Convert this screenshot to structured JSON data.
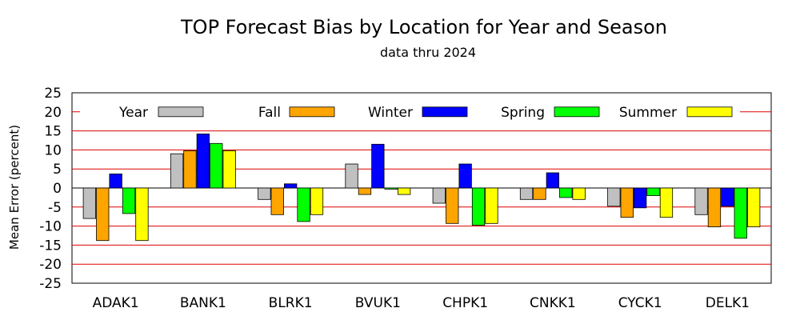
{
  "chart_data": {
    "type": "bar",
    "title": "TOP Forecast Bias by Location for Year and Season",
    "subtitle": "data thru 2024",
    "xlabel": "",
    "ylabel": "Mean Error (percent)",
    "ylim": [
      -25,
      25
    ],
    "yticks": [
      25,
      20,
      15,
      10,
      5,
      0,
      -5,
      -10,
      -15,
      -20,
      -25
    ],
    "grid": "horizontal, red",
    "legend_position": "top",
    "categories": [
      "ADAK1",
      "BANK1",
      "BLRK1",
      "BVUK1",
      "CHPK1",
      "CNKK1",
      "CYCK1",
      "DELK1"
    ],
    "series": [
      {
        "name": "Year",
        "color": "#c0c0c0",
        "values": [
          -8.0,
          9.0,
          -3.0,
          6.3,
          -4.0,
          -3.0,
          -4.8,
          -7.0
        ]
      },
      {
        "name": "Fall",
        "color": "#ffa500",
        "values": [
          -13.8,
          9.8,
          -7.0,
          -1.7,
          -9.3,
          -3.0,
          -7.7,
          -10.2
        ]
      },
      {
        "name": "Winter",
        "color": "#0000ff",
        "values": [
          3.7,
          14.2,
          1.1,
          11.5,
          6.3,
          4.0,
          -5.2,
          -4.8
        ]
      },
      {
        "name": "Spring",
        "color": "#00ff00",
        "values": [
          -6.7,
          11.7,
          -8.8,
          -0.3,
          -9.8,
          -2.5,
          -2.0,
          -13.2
        ]
      },
      {
        "name": "Summer",
        "color": "#ffff00",
        "values": [
          -13.8,
          9.8,
          -7.0,
          -1.7,
          -9.3,
          -3.0,
          -7.7,
          -10.2
        ]
      }
    ]
  }
}
